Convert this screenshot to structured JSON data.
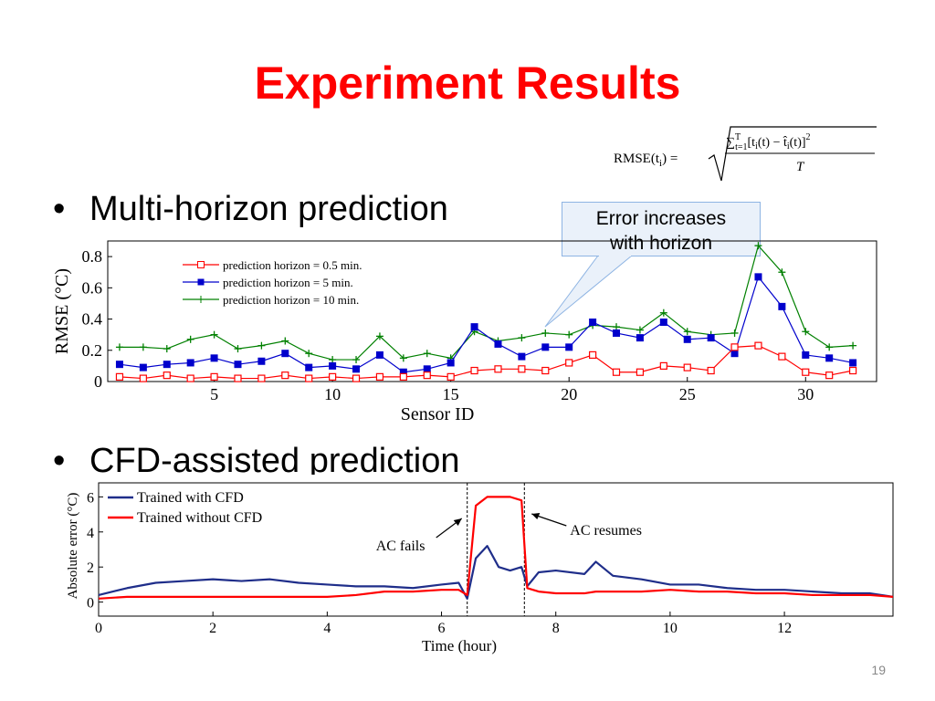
{
  "slide": {
    "title": "Experiment Results",
    "bullets": [
      "Multi-horizon prediction",
      "CFD-assisted prediction"
    ],
    "bullet_symbol": "•",
    "callout": [
      "Error increases",
      "with horizon"
    ],
    "page_number": "19",
    "formula": {
      "lhs": "RMSE(t",
      "lhs_sub": "i",
      "lhs_close": ") =",
      "numerator": "∑",
      "num_sub": "t=1",
      "num_sup": "T",
      "num_body": "[t",
      "num_body_sub": "i",
      "num_body2": "(t) − t̂",
      "num_body2_sub": "i",
      "num_body3": "(t)]",
      "num_sup2": "2",
      "denominator": "T"
    },
    "colors": {
      "title": "#ff0000",
      "series_05": "#ff0000",
      "series_5": "#0000cc",
      "series_10": "#008000",
      "cfd": "#1f2e8a",
      "nocfd": "#ff0000"
    }
  },
  "chart_data": [
    {
      "type": "line",
      "xlabel": "Sensor ID",
      "ylabel": "RMSE (°C)",
      "xlim": [
        0.5,
        33
      ],
      "ylim": [
        0,
        0.9
      ],
      "xticks": [
        5,
        10,
        15,
        20,
        25,
        30
      ],
      "yticks": [
        0,
        0.2,
        0.4,
        0.6,
        0.8
      ],
      "ytick_labels": [
        "0",
        "0.2",
        "0.4",
        "0.6",
        "0.8"
      ],
      "legend": "top-left",
      "x": [
        1,
        2,
        3,
        4,
        5,
        6,
        7,
        8,
        9,
        10,
        11,
        12,
        13,
        14,
        15,
        16,
        17,
        18,
        19,
        20,
        21,
        22,
        23,
        24,
        25,
        26,
        27,
        28,
        29,
        30,
        31,
        32
      ],
      "series": [
        {
          "name": "prediction horizon = 0.5 min.",
          "marker": "square-open",
          "values": [
            0.03,
            0.02,
            0.04,
            0.02,
            0.03,
            0.02,
            0.02,
            0.04,
            0.02,
            0.03,
            0.02,
            0.03,
            0.03,
            0.04,
            0.03,
            0.07,
            0.08,
            0.08,
            0.07,
            0.12,
            0.17,
            0.06,
            0.06,
            0.1,
            0.09,
            0.07,
            0.22,
            0.23,
            0.16,
            0.06,
            0.04,
            0.07
          ]
        },
        {
          "name": "prediction horizon = 5 min.",
          "marker": "square-filled",
          "values": [
            0.11,
            0.09,
            0.11,
            0.12,
            0.15,
            0.11,
            0.13,
            0.18,
            0.09,
            0.1,
            0.08,
            0.17,
            0.06,
            0.08,
            0.12,
            0.35,
            0.24,
            0.16,
            0.22,
            0.22,
            0.38,
            0.31,
            0.28,
            0.38,
            0.27,
            0.28,
            0.18,
            0.67,
            0.48,
            0.17,
            0.15,
            0.12
          ]
        },
        {
          "name": "prediction horizon = 10 min.",
          "marker": "plus",
          "values": [
            0.22,
            0.22,
            0.21,
            0.27,
            0.3,
            0.21,
            0.23,
            0.26,
            0.18,
            0.14,
            0.14,
            0.29,
            0.15,
            0.18,
            0.15,
            0.32,
            0.26,
            0.28,
            0.31,
            0.3,
            0.36,
            0.35,
            0.33,
            0.44,
            0.32,
            0.3,
            0.31,
            0.87,
            0.7,
            0.32,
            0.22,
            0.23
          ]
        }
      ]
    },
    {
      "type": "line",
      "xlabel": "Time (hour)",
      "ylabel": "Absolute error (°C)",
      "xlim": [
        0,
        13.9
      ],
      "ylim": [
        -0.8,
        6.8
      ],
      "xticks": [
        0,
        2,
        4,
        6,
        8,
        10,
        12
      ],
      "yticks": [
        0,
        2,
        4,
        6
      ],
      "legend": "top-left",
      "annotations": [
        {
          "text": "AC fails",
          "x": 6.45
        },
        {
          "text": "AC resumes",
          "x": 7.45
        }
      ],
      "x": [
        0,
        0.5,
        1,
        1.5,
        2,
        2.5,
        3,
        3.5,
        4,
        4.5,
        5,
        5.5,
        6,
        6.3,
        6.45,
        6.6,
        6.8,
        7.0,
        7.2,
        7.4,
        7.5,
        7.7,
        8,
        8.5,
        8.7,
        9,
        9.5,
        10,
        10.5,
        11,
        11.5,
        12,
        12.5,
        13,
        13.5,
        13.9
      ],
      "series": [
        {
          "name": "Trained with CFD",
          "values": [
            0.4,
            0.8,
            1.1,
            1.2,
            1.3,
            1.2,
            1.3,
            1.1,
            1.0,
            0.9,
            0.9,
            0.8,
            1.0,
            1.1,
            0.2,
            2.5,
            3.2,
            2.0,
            1.8,
            2.0,
            0.9,
            1.7,
            1.8,
            1.6,
            2.3,
            1.5,
            1.3,
            1.0,
            1.0,
            0.8,
            0.7,
            0.7,
            0.6,
            0.5,
            0.5,
            0.3
          ]
        },
        {
          "name": "Trained without CFD",
          "values": [
            0.2,
            0.3,
            0.3,
            0.3,
            0.3,
            0.3,
            0.3,
            0.3,
            0.3,
            0.4,
            0.6,
            0.6,
            0.7,
            0.7,
            0.4,
            5.5,
            6.0,
            6.0,
            6.0,
            5.8,
            0.8,
            0.6,
            0.5,
            0.5,
            0.6,
            0.6,
            0.6,
            0.7,
            0.6,
            0.6,
            0.5,
            0.5,
            0.4,
            0.4,
            0.4,
            0.3
          ]
        }
      ]
    }
  ]
}
